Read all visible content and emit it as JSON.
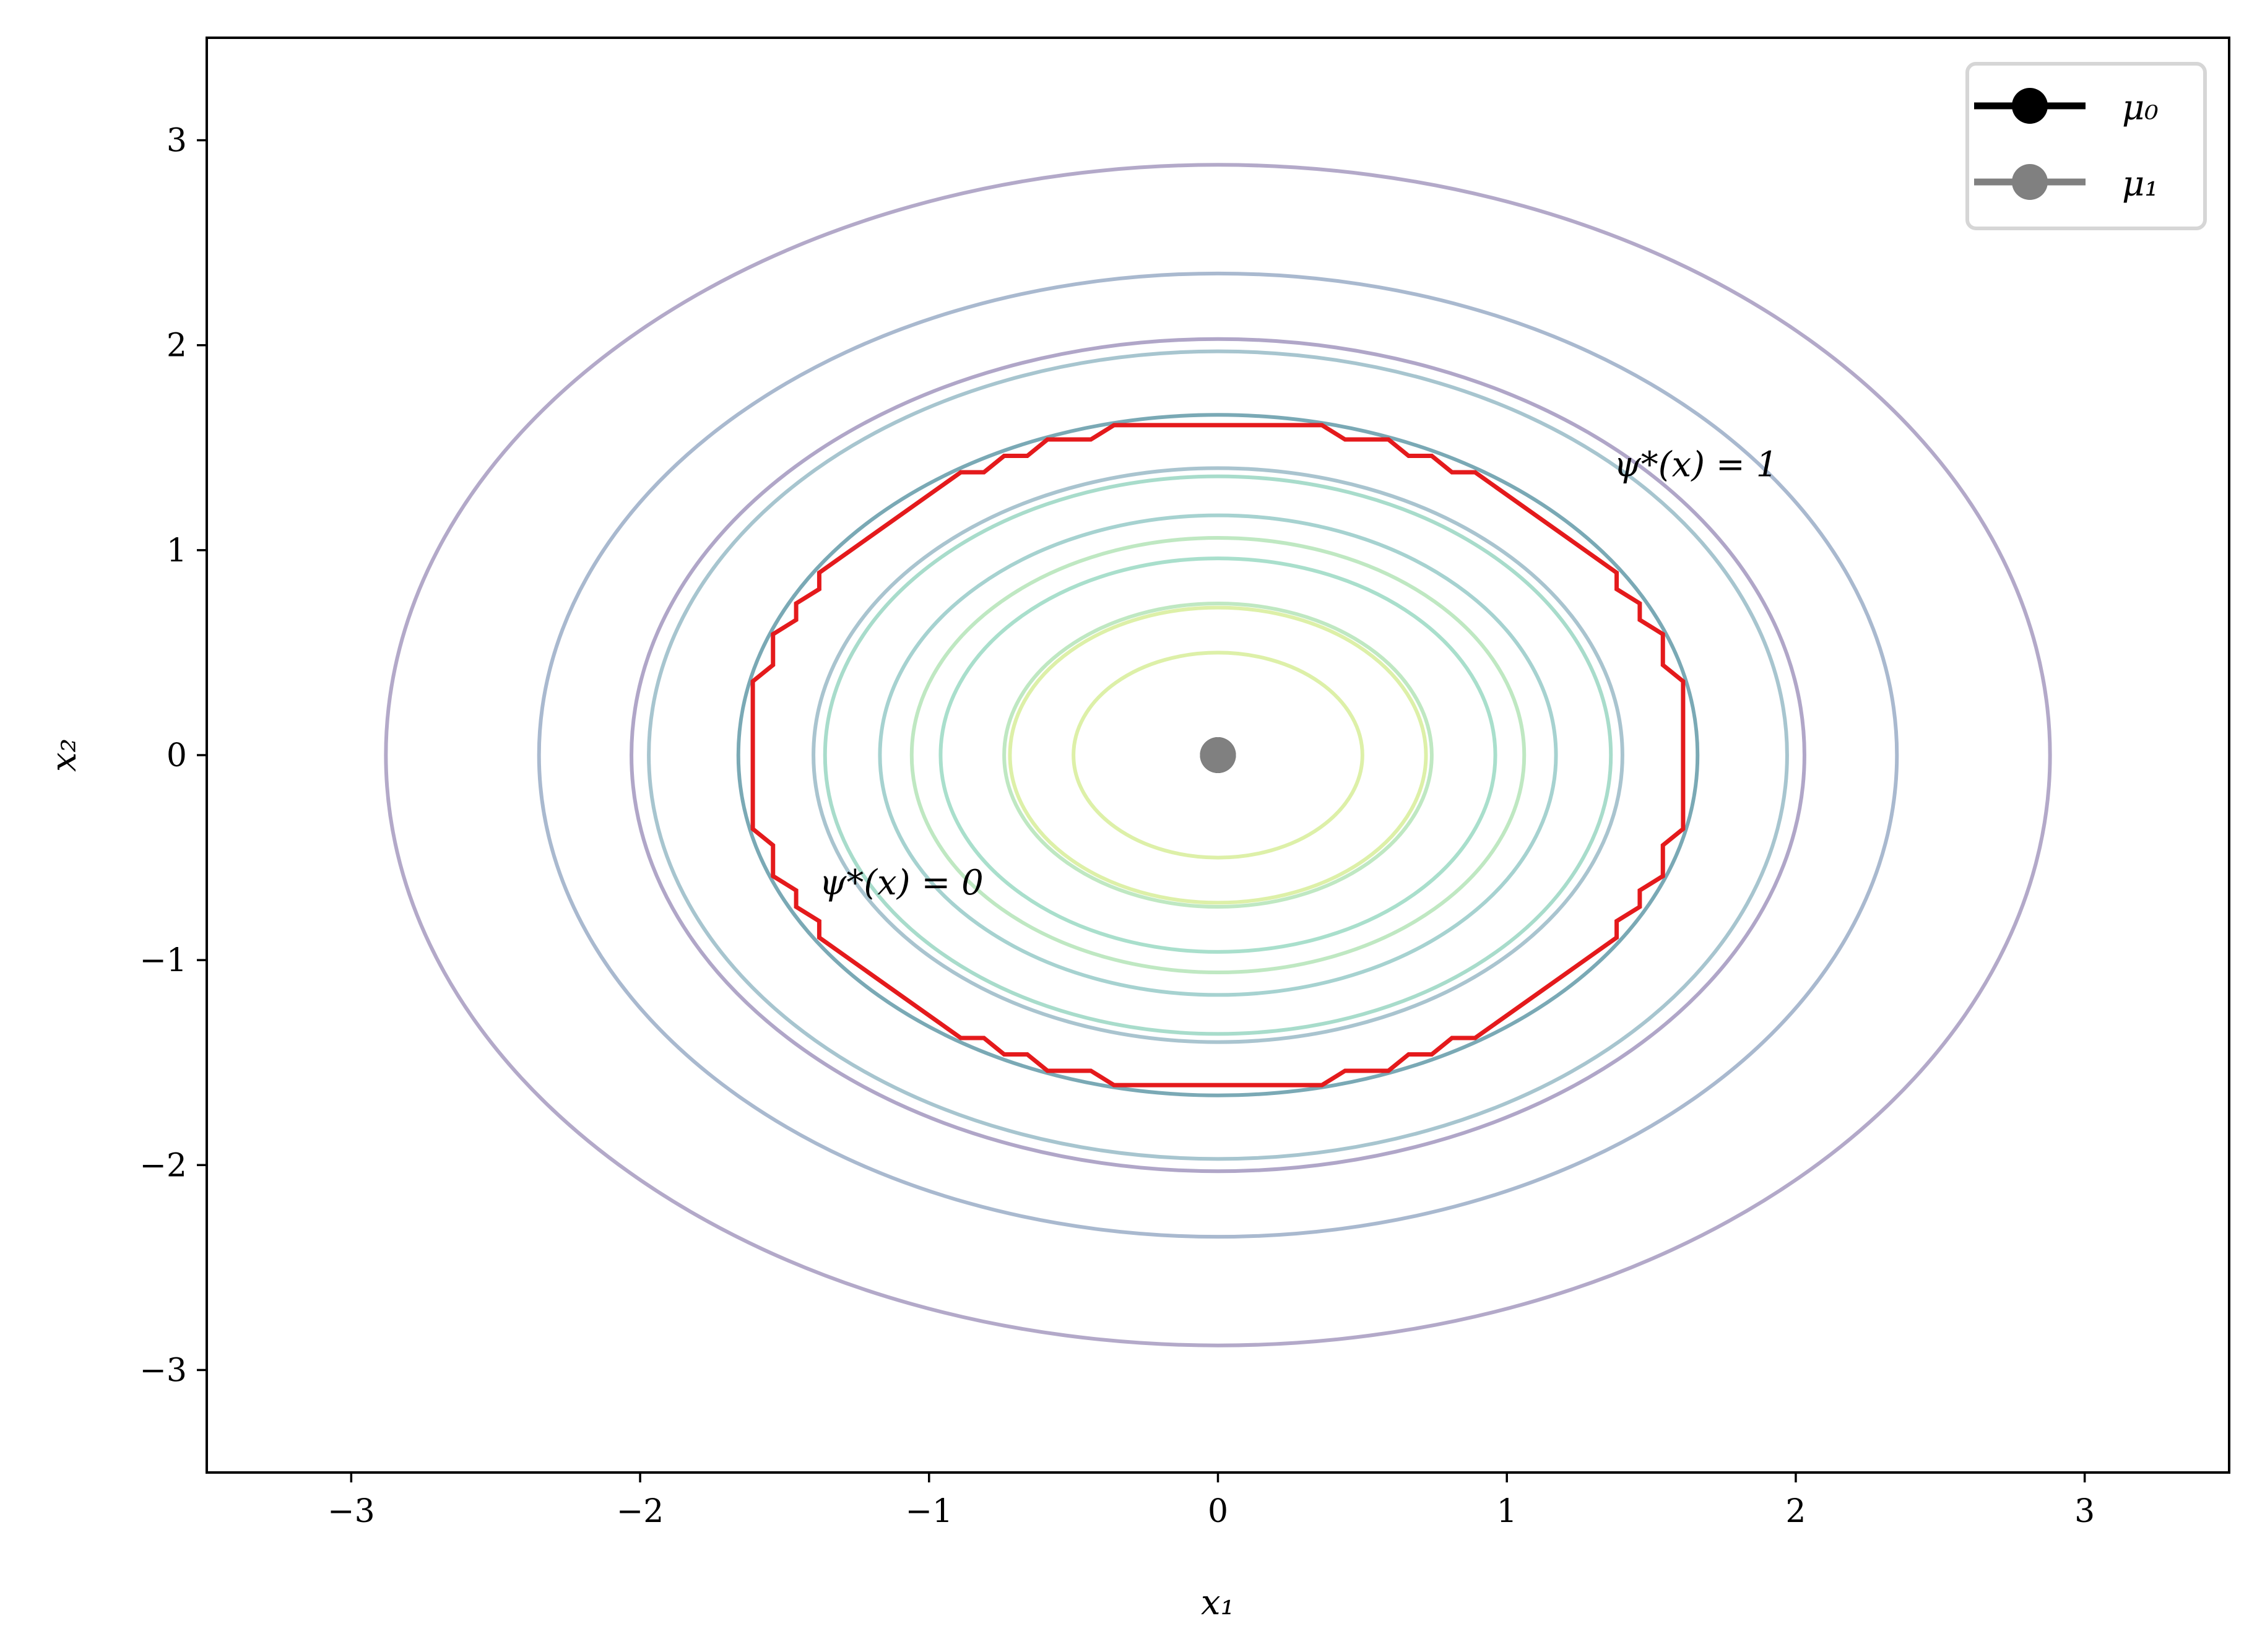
{
  "chart_data": {
    "type": "line",
    "title": "",
    "xlabel": "x₁",
    "ylabel": "x₂",
    "xlim": [
      -3.5,
      3.5
    ],
    "ylim": [
      -3.5,
      3.5
    ],
    "xticks": [
      -3,
      -2,
      -1,
      0,
      1,
      2,
      3
    ],
    "yticks": [
      -3,
      -2,
      -1,
      0,
      1,
      2,
      3
    ],
    "xtick_labels": [
      "−3",
      "−2",
      "−1",
      "0",
      "1",
      "2",
      "3"
    ],
    "ytick_labels": [
      "−3",
      "−2",
      "−1",
      "0",
      "1",
      "2",
      "3"
    ],
    "grid": false,
    "legend": {
      "placement": "top-right",
      "entries": [
        {
          "label": "μ₀",
          "color": "#000000"
        },
        {
          "label": "μ₁",
          "color": "#808080"
        }
      ]
    },
    "points": [
      {
        "series": "μ₀",
        "x": 0,
        "y": 0,
        "color": "#000000"
      },
      {
        "series": "μ₁",
        "x": 0,
        "y": 0,
        "color": "#808080"
      }
    ],
    "contours": [
      {
        "radius": 2.88,
        "color": "#b3a9c9"
      },
      {
        "radius": 2.35,
        "color": "#a9b9cf"
      },
      {
        "radius": 2.03,
        "color": "#b0a6c8"
      },
      {
        "radius": 1.97,
        "color": "#a7c5cf"
      },
      {
        "radius": 1.66,
        "color": "#7aa9b5"
      },
      {
        "radius": 1.4,
        "color": "#a9c4cf"
      },
      {
        "radius": 1.36,
        "color": "#a8dccb"
      },
      {
        "radius": 1.17,
        "color": "#a6d2d0"
      },
      {
        "radius": 1.06,
        "color": "#bfe8c2"
      },
      {
        "radius": 0.96,
        "color": "#a9dfcc"
      },
      {
        "radius": 0.74,
        "color": "#bfe8c2"
      },
      {
        "radius": 0.72,
        "color": "#ddf0a8"
      },
      {
        "radius": 0.5,
        "color": "#ddf0a8"
      }
    ],
    "boundary": {
      "color": "#e41a1c",
      "octant": [
        [
          0,
          1.61
        ],
        [
          0.36,
          1.61
        ],
        [
          0.44,
          1.54
        ],
        [
          0.59,
          1.54
        ],
        [
          0.66,
          1.46
        ],
        [
          0.74,
          1.46
        ],
        [
          0.81,
          1.38
        ],
        [
          0.89,
          1.38
        ]
      ]
    },
    "annotations": [
      {
        "text": "ψ*(x) = 1",
        "x": 1.37,
        "y": 1.36
      },
      {
        "text": "ψ*(x) = 0",
        "x": -1.38,
        "y": -0.68
      }
    ]
  }
}
